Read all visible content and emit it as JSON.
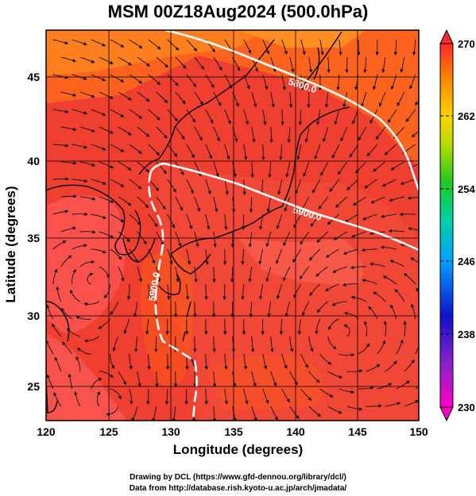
{
  "title": "MSM 00Z18Aug2024 (500.0hPa)",
  "x_axis": {
    "label": "Longitude (degrees)",
    "ticks": [
      "120",
      "125",
      "130",
      "135",
      "140",
      "145",
      "150"
    ]
  },
  "y_axis": {
    "label": "Latitude  (degrees)",
    "ticks": [
      "25",
      "30",
      "35",
      "40",
      "45"
    ]
  },
  "colorbar": {
    "ticks": [
      "230",
      "238",
      "246",
      "254",
      "262",
      "270"
    ]
  },
  "contour_labels": [
    "5800.0",
    "5900.0",
    "5900.0"
  ],
  "credits": {
    "line1": "Drawing by DCL (https://www.gfd-dennou.org/library/dcl/)",
    "line2": "Data from http://database.rish.kyoto-u.ac.jp/arch/jmadata/"
  },
  "colors": {
    "field_base": "#ee3f30",
    "field_warm": "#ff6a1c",
    "field_cool": "#ff5a5a",
    "contour": "#ffffff",
    "coast": "#000000"
  },
  "icons": [
    "streamline-arrow",
    "colorbar-top-triangle",
    "colorbar-bottom-triangle"
  ]
}
